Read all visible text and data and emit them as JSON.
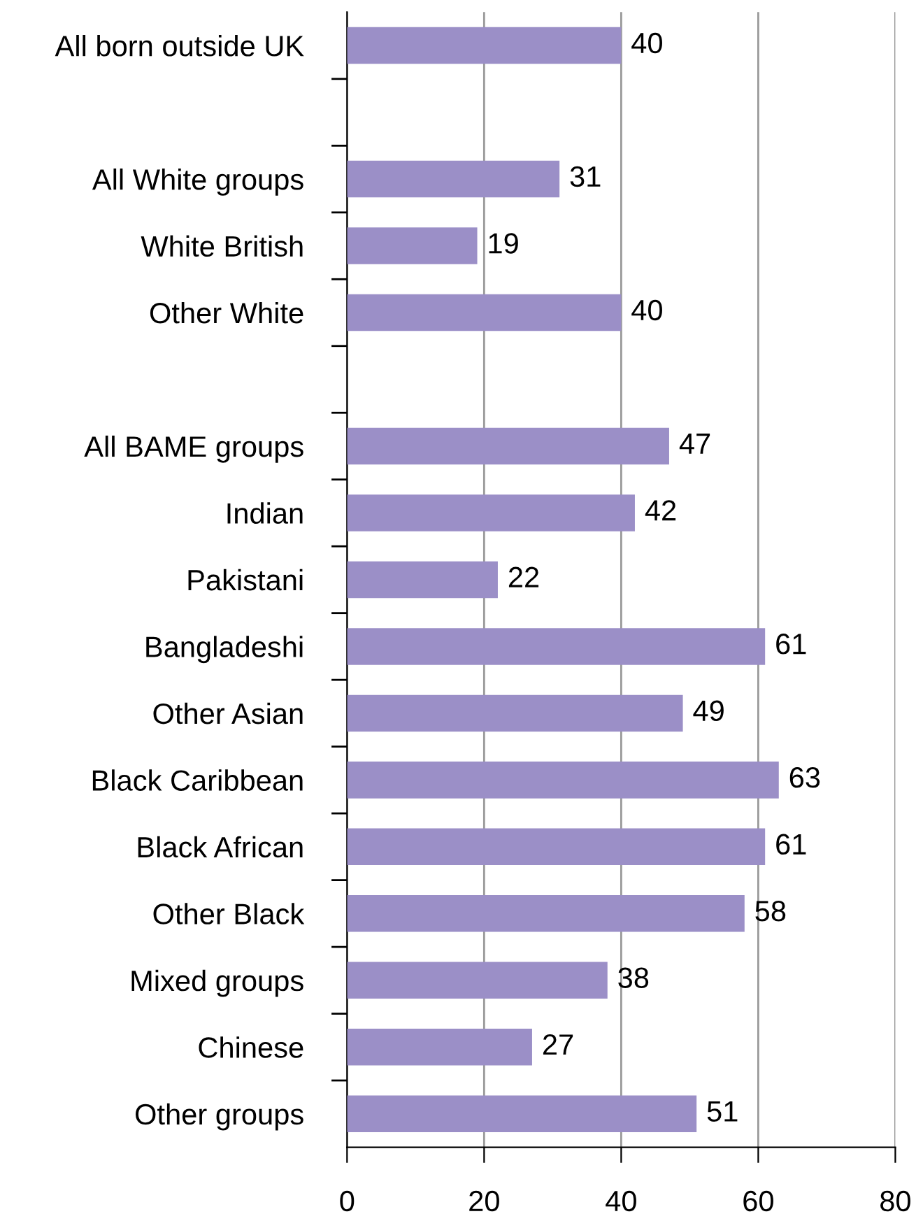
{
  "chart_data": {
    "type": "bar",
    "orientation": "horizontal",
    "categories": [
      "All born outside UK",
      null,
      "All White groups",
      "White British",
      "Other White",
      null,
      "All BAME groups",
      "Indian",
      "Pakistani",
      "Bangladeshi",
      "Other Asian",
      "Black Caribbean",
      "Black African",
      "Other Black",
      "Mixed groups",
      "Chinese",
      "Other groups"
    ],
    "values": [
      40,
      null,
      31,
      19,
      40,
      null,
      47,
      42,
      22,
      61,
      49,
      63,
      61,
      58,
      38,
      27,
      51
    ],
    "color": "#9b8fc7",
    "xlim": [
      0,
      80
    ],
    "xticks": [
      0,
      20,
      40,
      60,
      80
    ],
    "grid": "x",
    "data_labels": true
  }
}
